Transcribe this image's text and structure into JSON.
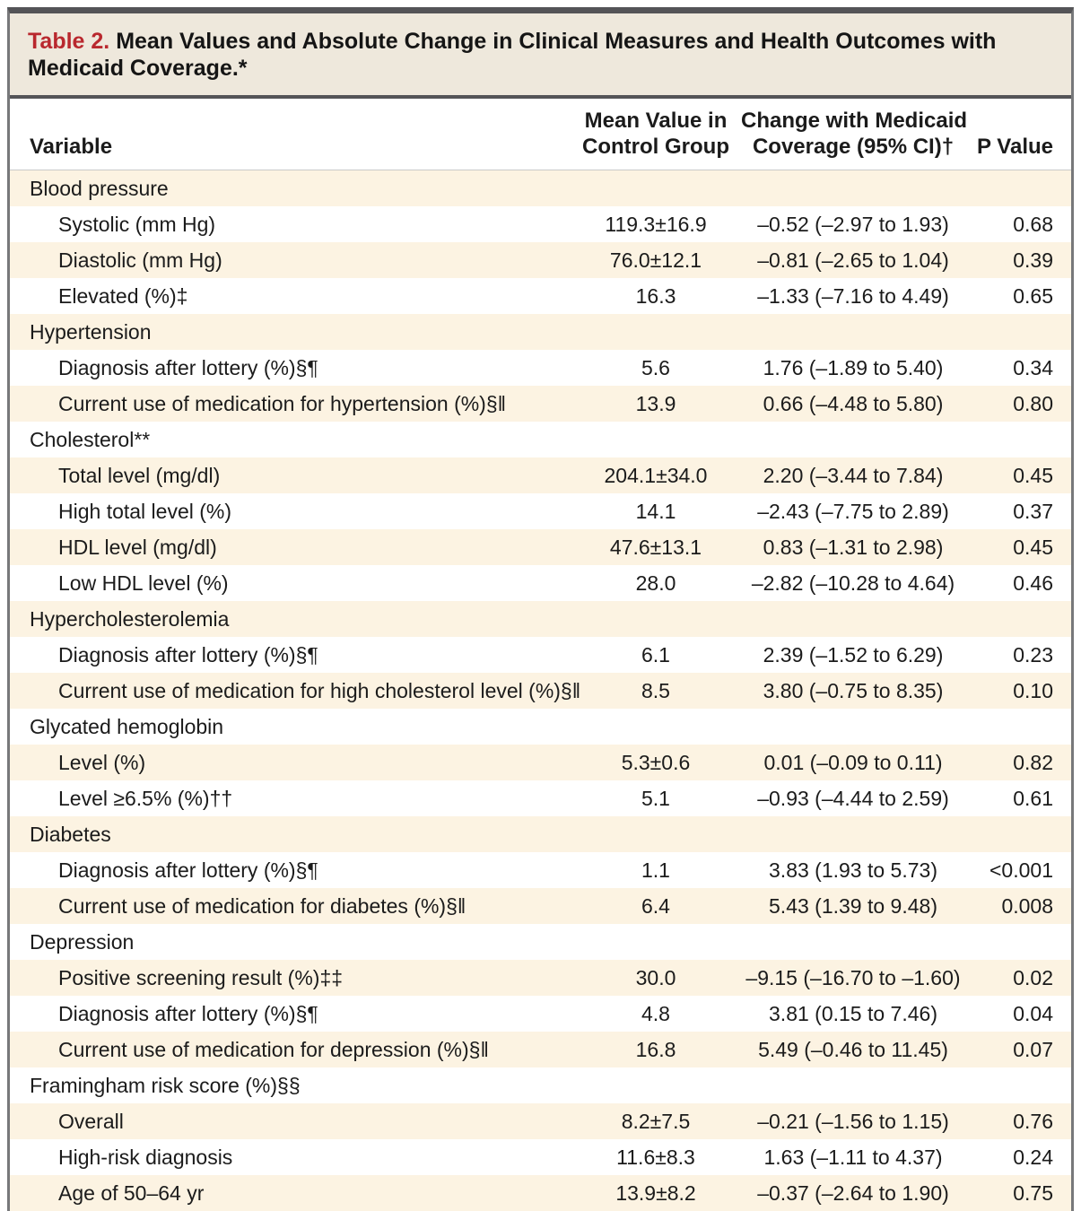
{
  "title": {
    "label": "Table 2.",
    "text": " Mean Values and Absolute Change in Clinical Measures and Health Outcomes with Medicaid Coverage.*"
  },
  "columns": {
    "variable": "Variable",
    "mean_line1": "Mean Value in",
    "mean_line2": "Control Group",
    "change_line1": "Change with Medicaid",
    "change_line2": "Coverage (95% CI)†",
    "pvalue": "P Value"
  },
  "colors": {
    "accent_red": "#b9282e",
    "stripe_cream": "#fcf3e2",
    "title_band_bg": "#eee8dc",
    "border_dark": "#545457"
  },
  "rows": [
    {
      "label": "Blood pressure",
      "indent": 0,
      "mean": "",
      "change": "",
      "p": ""
    },
    {
      "label": "Systolic (mm Hg)",
      "indent": 1,
      "mean": "119.3±16.9",
      "change": "–0.52 (–2.97 to 1.93)",
      "p": "0.68"
    },
    {
      "label": "Diastolic (mm Hg)",
      "indent": 1,
      "mean": "76.0±12.1",
      "change": "–0.81 (–2.65 to 1.04)",
      "p": "0.39"
    },
    {
      "label": "Elevated (%)‡",
      "indent": 1,
      "mean": "16.3",
      "change": "–1.33 (–7.16 to 4.49)",
      "p": "0.65"
    },
    {
      "label": "Hypertension",
      "indent": 0,
      "mean": "",
      "change": "",
      "p": ""
    },
    {
      "label": "Diagnosis after lottery (%)§¶",
      "indent": 1,
      "mean": "5.6",
      "change": "1.76 (–1.89 to 5.40)",
      "p": "0.34"
    },
    {
      "label": "Current use of medication for hypertension (%)§‖",
      "indent": 1,
      "mean": "13.9",
      "change": "0.66 (–4.48 to 5.80)",
      "p": "0.80"
    },
    {
      "label": "Cholesterol**",
      "indent": 0,
      "mean": "",
      "change": "",
      "p": ""
    },
    {
      "label": "Total level (mg/dl)",
      "indent": 1,
      "mean": "204.1±34.0",
      "change": "2.20 (–3.44 to 7.84)",
      "p": "0.45"
    },
    {
      "label": "High total level (%)",
      "indent": 1,
      "mean": "14.1",
      "change": "–2.43 (–7.75 to 2.89)",
      "p": "0.37"
    },
    {
      "label": "HDL level (mg/dl)",
      "indent": 1,
      "mean": "47.6±13.1",
      "change": "0.83 (–1.31 to 2.98)",
      "p": "0.45"
    },
    {
      "label": "Low HDL level (%)",
      "indent": 1,
      "mean": "28.0",
      "change": "–2.82 (–10.28 to 4.64)",
      "p": "0.46"
    },
    {
      "label": "Hypercholesterolemia",
      "indent": 0,
      "mean": "",
      "change": "",
      "p": ""
    },
    {
      "label": "Diagnosis after lottery (%)§¶",
      "indent": 1,
      "mean": "6.1",
      "change": "2.39 (–1.52 to 6.29)",
      "p": "0.23"
    },
    {
      "label": "Current use of medication for high cholesterol level (%)§‖",
      "indent": 1,
      "mean": "8.5",
      "change": "3.80 (–0.75 to 8.35)",
      "p": "0.10"
    },
    {
      "label": "Glycated hemoglobin",
      "indent": 0,
      "mean": "",
      "change": "",
      "p": ""
    },
    {
      "label": "Level (%)",
      "indent": 1,
      "mean": "5.3±0.6",
      "change": "0.01 (–0.09 to 0.11)",
      "p": "0.82"
    },
    {
      "label": "Level ≥6.5% (%)††",
      "indent": 1,
      "mean": "5.1",
      "change": "–0.93 (–4.44 to 2.59)",
      "p": "0.61"
    },
    {
      "label": "Diabetes",
      "indent": 0,
      "mean": "",
      "change": "",
      "p": ""
    },
    {
      "label": "Diagnosis after lottery (%)§¶",
      "indent": 1,
      "mean": "1.1",
      "change": "3.83 (1.93 to 5.73)",
      "p": "<0.001"
    },
    {
      "label": "Current use of medication for diabetes (%)§‖",
      "indent": 1,
      "mean": "6.4",
      "change": "5.43 (1.39 to 9.48)",
      "p": "0.008"
    },
    {
      "label": "Depression",
      "indent": 0,
      "mean": "",
      "change": "",
      "p": ""
    },
    {
      "label": "Positive screening result (%)‡‡",
      "indent": 1,
      "mean": "30.0",
      "change": "–9.15 (–16.70 to –1.60)",
      "p": "0.02"
    },
    {
      "label": "Diagnosis after lottery (%)§¶",
      "indent": 1,
      "mean": "4.8",
      "change": "3.81 (0.15 to 7.46)",
      "p": "0.04"
    },
    {
      "label": "Current use of medication for depression (%)§‖",
      "indent": 1,
      "mean": "16.8",
      "change": "5.49 (–0.46 to 11.45)",
      "p": "0.07"
    },
    {
      "label": "Framingham risk score (%)§§",
      "indent": 0,
      "mean": "",
      "change": "",
      "p": ""
    },
    {
      "label": "Overall",
      "indent": 1,
      "mean": "8.2±7.5",
      "change": "–0.21 (–1.56 to 1.15)",
      "p": "0.76"
    },
    {
      "label": "High-risk diagnosis",
      "indent": 1,
      "mean": "11.6±8.3",
      "change": "1.63 (–1.11 to 4.37)",
      "p": "0.24"
    },
    {
      "label": "Age of 50–64 yr",
      "indent": 1,
      "mean": "13.9±8.2",
      "change": "–0.37 (–2.64 to 1.90)",
      "p": "0.75"
    }
  ]
}
